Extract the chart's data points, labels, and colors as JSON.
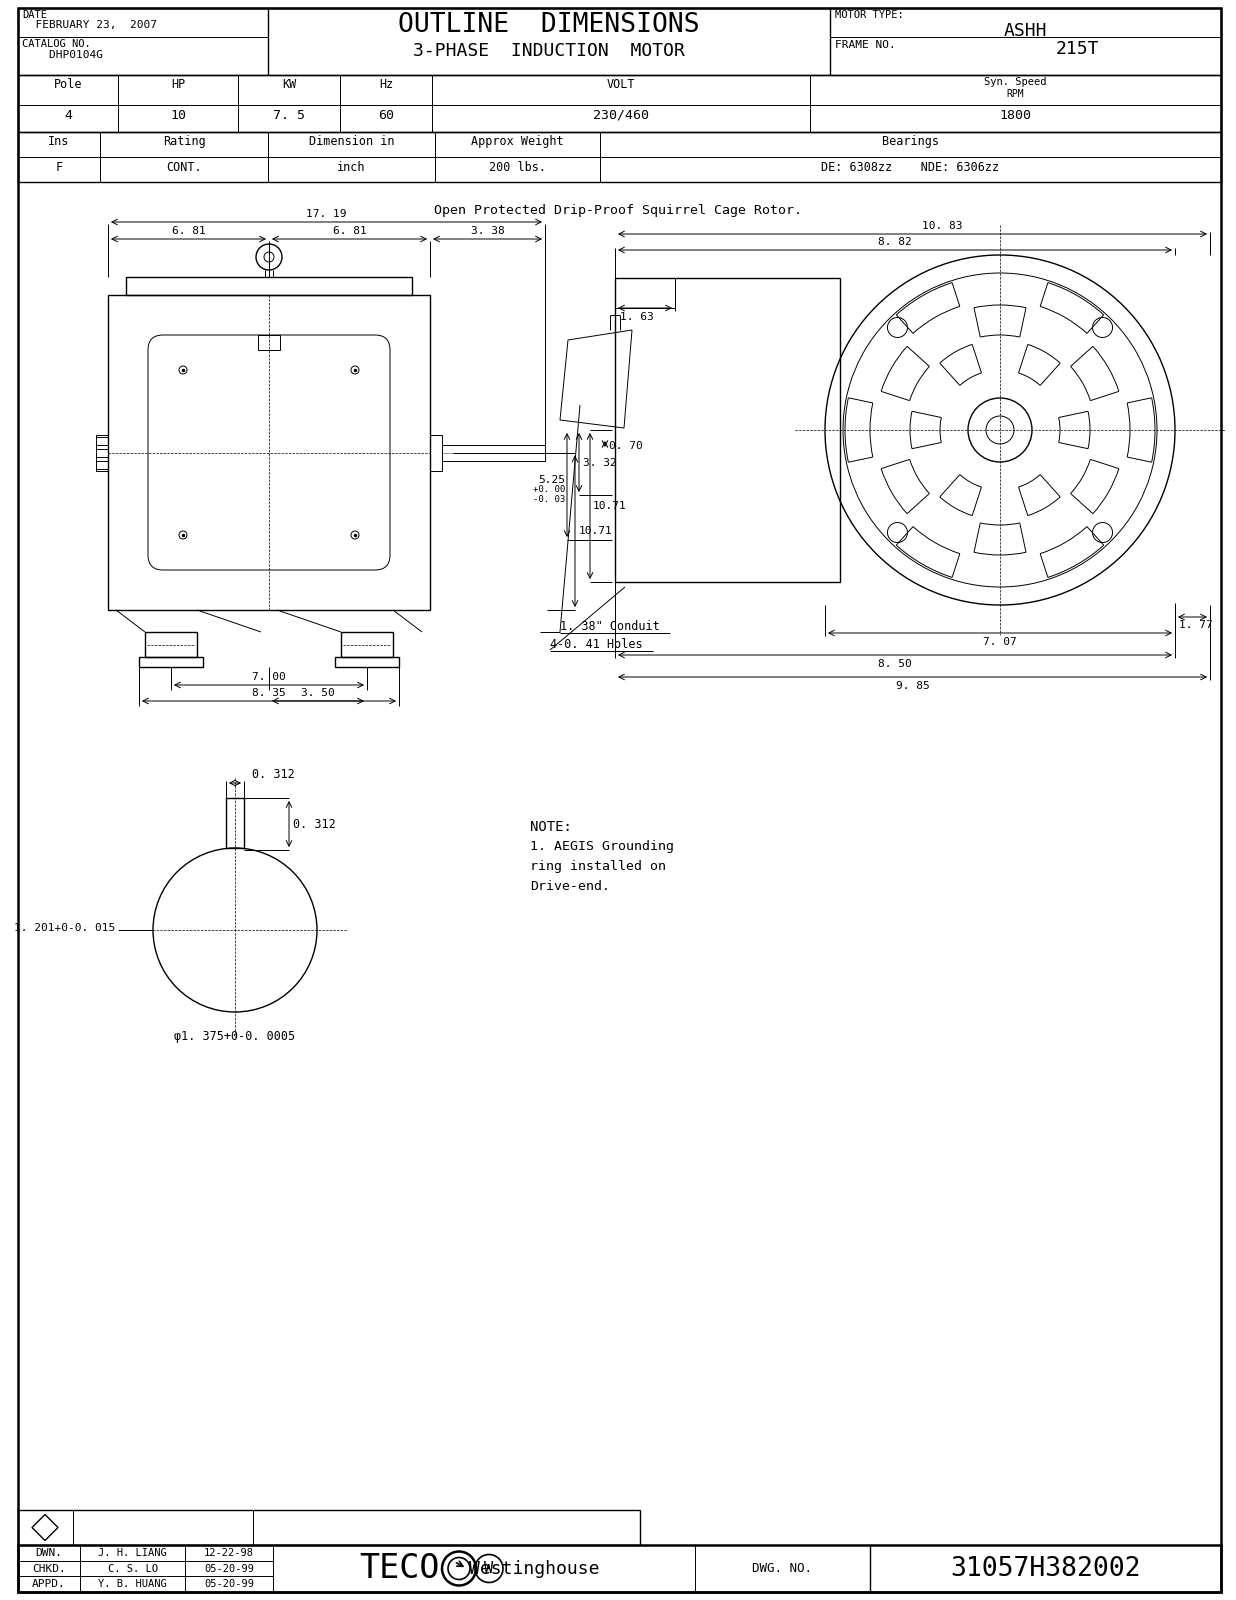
{
  "bg_color": "#ffffff",
  "line_color": "#000000",
  "title_main": "OUTLINE  DIMENSIONS",
  "title_sub": "3-PHASE  INDUCTION  MOTOR",
  "date_label": "DATE",
  "date_value": "FEBRUARY 23,  2007",
  "catalog_label": "CATALOG NO.",
  "catalog_value": "DHP0104G",
  "motor_type_label": "MOTOR TYPE:",
  "motor_type_value": "ASHH",
  "frame_label": "FRAME NO.",
  "frame_value": "215T",
  "t1_headers": [
    "Pole",
    "HP",
    "KW",
    "Hz",
    "VOLT",
    "Syn. Speed\nRPM"
  ],
  "t1_values": [
    "4",
    "10",
    "7. 5",
    "60",
    "230/460",
    "1800"
  ],
  "t2_headers": [
    "Ins",
    "Rating",
    "Dimension in",
    "Approx Weight",
    "Bearings"
  ],
  "t2_values": [
    "F",
    "CONT.",
    "inch",
    "200 lbs.",
    "DE: 6308zz    NDE: 6306zz"
  ],
  "open_text": "Open Protected Drip-Proof Squirrel Cage Rotor.",
  "note_lines": [
    "NOTE:",
    "1. AEGIS Grounding",
    "ring installed on",
    "Drive-end."
  ],
  "dwn_label": "DWN.",
  "dwn_name": "J. H. LIANG",
  "dwn_date": "12-22-98",
  "chkd_label": "CHKD.",
  "chkd_name": "C. S. LO",
  "chkd_date": "05-20-99",
  "appd_label": "APPD.",
  "appd_name": "Y. B. HUANG",
  "appd_date": "05-20-99",
  "dwg_no_label": "DWG. NO.",
  "dwg_no_value": "31057H382002"
}
